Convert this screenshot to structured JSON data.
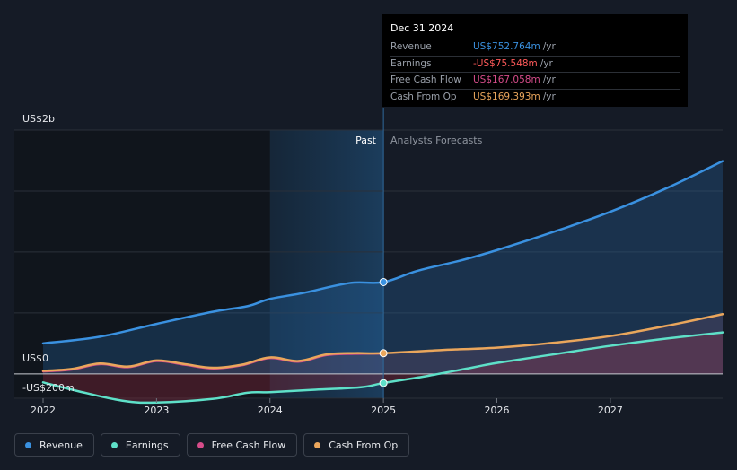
{
  "chart_data": {
    "type": "line",
    "title": "",
    "y_axis_labels": [
      "US$2b",
      "US$0",
      "-US$200m"
    ],
    "ylim": [
      -200,
      2000
    ],
    "x_ticks": [
      2022,
      2023,
      2024,
      2025,
      2026,
      2027
    ],
    "xlim": [
      2022.0,
      2027.99
    ],
    "past_label": "Past",
    "forecast_label": "Analysts Forecasts",
    "divider_x": 2025.0,
    "shade_start_x": 2024.0,
    "series": [
      {
        "name": "Revenue",
        "color": "#3a91e0",
        "x": [
          2022.0,
          2022.5,
          2023.0,
          2023.5,
          2023.8,
          2024.0,
          2024.3,
          2024.7,
          2025.0,
          2025.3,
          2025.7,
          2026.0,
          2026.5,
          2027.0,
          2027.5,
          2027.99
        ],
        "values": [
          250,
          305,
          410,
          510,
          555,
          615,
          665,
          745,
          753,
          845,
          935,
          1015,
          1165,
          1330,
          1525,
          1745
        ]
      },
      {
        "name": "Earnings",
        "color": "#5ee0c8",
        "x": [
          2022.0,
          2022.3,
          2022.7,
          2023.0,
          2023.5,
          2023.8,
          2024.0,
          2024.4,
          2024.8,
          2025.0,
          2025.4,
          2025.8,
          2026.0,
          2026.5,
          2027.0,
          2027.5,
          2027.99
        ],
        "values": [
          -70,
          -140,
          -220,
          -235,
          -205,
          -155,
          -150,
          -130,
          -110,
          -75.5,
          -15,
          55,
          90,
          160,
          230,
          290,
          340
        ]
      },
      {
        "name": "Free Cash Flow",
        "color": "#d64c8a",
        "x": [
          2022.0,
          2022.25,
          2022.5,
          2022.75,
          2023.0,
          2023.25,
          2023.5,
          2023.75,
          2024.0,
          2024.25,
          2024.5,
          2024.75,
          2025.0
        ],
        "values": [
          20,
          35,
          80,
          55,
          105,
          75,
          45,
          70,
          130,
          100,
          155,
          165,
          167.058
        ]
      },
      {
        "name": "Cash From Op",
        "color": "#eaa65c",
        "x": [
          2022.0,
          2022.25,
          2022.5,
          2022.75,
          2023.0,
          2023.25,
          2023.5,
          2023.75,
          2024.0,
          2024.25,
          2024.5,
          2024.75,
          2025.0,
          2025.5,
          2026.0,
          2026.5,
          2027.0,
          2027.5,
          2027.99
        ],
        "values": [
          25,
          40,
          85,
          60,
          110,
          80,
          50,
          75,
          135,
          105,
          160,
          170,
          169.393,
          195,
          215,
          255,
          310,
          395,
          490
        ]
      }
    ]
  },
  "tooltip": {
    "date": "Dec 31 2024",
    "unit": "/yr",
    "rows": [
      {
        "label": "Revenue",
        "value": "US$752.764m",
        "color": "#3a91e0"
      },
      {
        "label": "Earnings",
        "value": "-US$75.548m",
        "color": "#ff5a5a"
      },
      {
        "label": "Free Cash Flow",
        "value": "US$167.058m",
        "color": "#d64c8a"
      },
      {
        "label": "Cash From Op",
        "value": "US$169.393m",
        "color": "#eaa65c"
      }
    ]
  },
  "legend": [
    {
      "label": "Revenue",
      "color": "#3a91e0"
    },
    {
      "label": "Earnings",
      "color": "#5ee0c8"
    },
    {
      "label": "Free Cash Flow",
      "color": "#d64c8a"
    },
    {
      "label": "Cash From Op",
      "color": "#eaa65c"
    }
  ]
}
